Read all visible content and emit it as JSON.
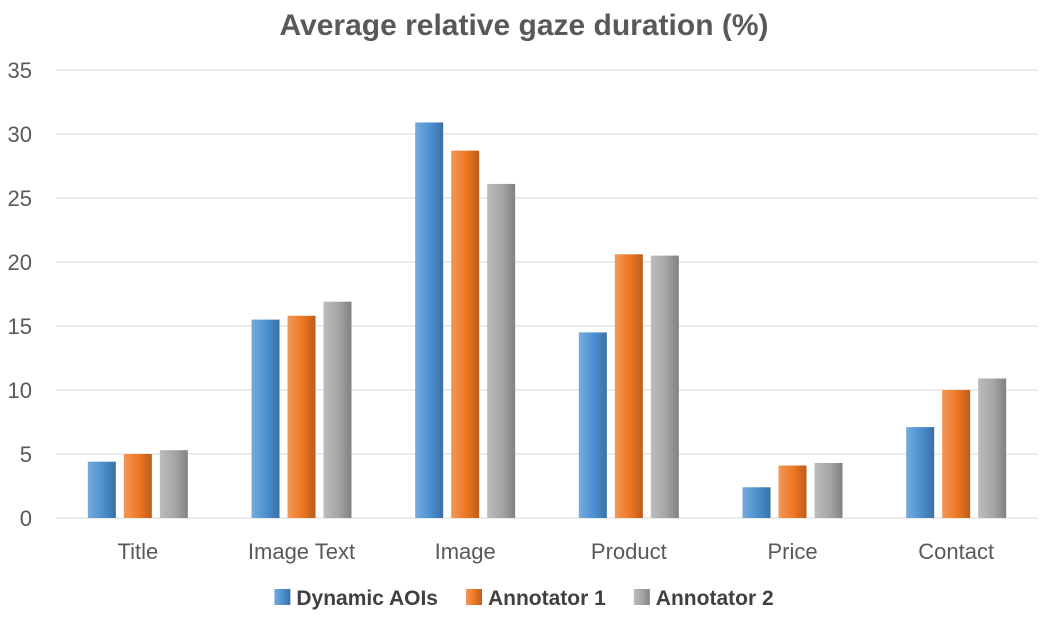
{
  "chart_data": {
    "type": "bar",
    "title": "Average relative gaze duration (%)",
    "xlabel": "",
    "ylabel": "",
    "categories": [
      "Title",
      "Image Text",
      "Image",
      "Product",
      "Price",
      "Contact"
    ],
    "series": [
      {
        "name": "Dynamic AOIs",
        "color": "#4a8fd0",
        "values": [
          4.4,
          15.5,
          30.9,
          14.5,
          2.4,
          7.1
        ]
      },
      {
        "name": "Annotator 1",
        "color": "#ee7622",
        "values": [
          5.0,
          15.8,
          28.7,
          20.6,
          4.1,
          10.0
        ]
      },
      {
        "name": "Annotator 2",
        "color": "#a5a5a5",
        "values": [
          5.3,
          16.9,
          26.1,
          20.5,
          4.3,
          10.9
        ]
      }
    ],
    "ylim": [
      0,
      35
    ],
    "yticks": [
      0,
      5,
      10,
      15,
      20,
      25,
      30,
      35
    ],
    "grid": true,
    "legend": "bottom"
  }
}
